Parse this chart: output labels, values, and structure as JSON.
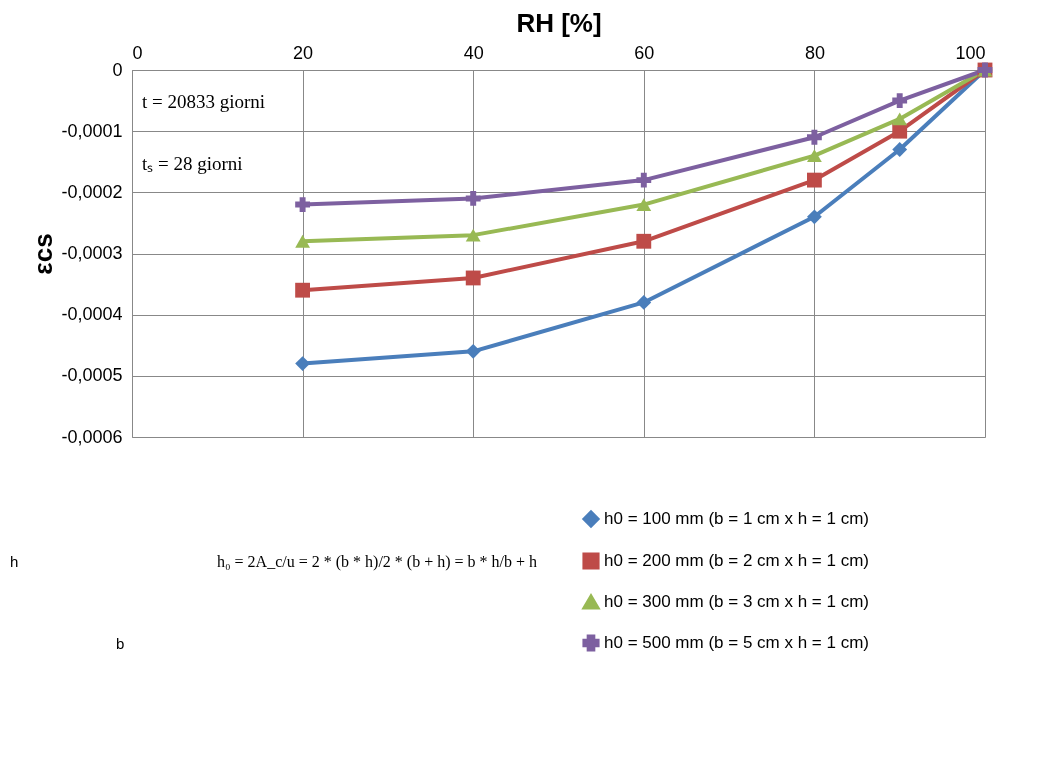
{
  "chart_data": {
    "type": "line",
    "xlabel": "RH [%]",
    "ylabel": "εcs",
    "x": [
      20,
      40,
      60,
      80,
      90,
      100
    ],
    "xlim": [
      0,
      100
    ],
    "xticks": [
      0,
      20,
      40,
      60,
      80,
      100
    ],
    "ylim": [
      -0.0006,
      0
    ],
    "yticks": [
      {
        "value": 0,
        "label": "0"
      },
      {
        "value": -0.0001,
        "label": "-0,0001"
      },
      {
        "value": -0.0002,
        "label": "-0,0002"
      },
      {
        "value": -0.0003,
        "label": "-0,0003"
      },
      {
        "value": -0.0004,
        "label": "-0,0004"
      },
      {
        "value": -0.0005,
        "label": "-0,0005"
      },
      {
        "value": -0.0006,
        "label": "-0,0006"
      }
    ],
    "grid": true,
    "legend": "bottom right",
    "line_style": "solid",
    "series": [
      {
        "name": "h0 = 100 mm (b = 1 cm x h = 1 cm)",
        "color": "#4a7ebb",
        "marker": "diamond",
        "values": [
          -0.00048,
          -0.00046,
          -0.00038,
          -0.00024,
          -0.00013,
          0
        ]
      },
      {
        "name": "h0 = 200 mm (b = 2 cm x h = 1 cm)",
        "color": "#be4b48",
        "marker": "square",
        "values": [
          -0.00036,
          -0.00034,
          -0.00028,
          -0.00018,
          -0.0001,
          0
        ]
      },
      {
        "name": "h0 = 300 mm (b = 3 cm x h = 1 cm)",
        "color": "#98b954",
        "marker": "triangle",
        "values": [
          -0.00028,
          -0.00027,
          -0.00022,
          -0.00014,
          -8e-05,
          0
        ]
      },
      {
        "name": "h0 = 500 mm (b = 5 cm x h = 1 cm)",
        "color": "#7d60a0",
        "marker": "cross",
        "values": [
          -0.00022,
          -0.00021,
          -0.00018,
          -0.00011,
          -5e-05,
          0
        ]
      }
    ],
    "annotations": [
      "t = 20833 giorni",
      "tₛ = 28 giorni",
      "h₀ = 2A_c/u = 2 * (b * h)/2 * (b + h) = b * h/b + h",
      "h",
      "b"
    ]
  }
}
